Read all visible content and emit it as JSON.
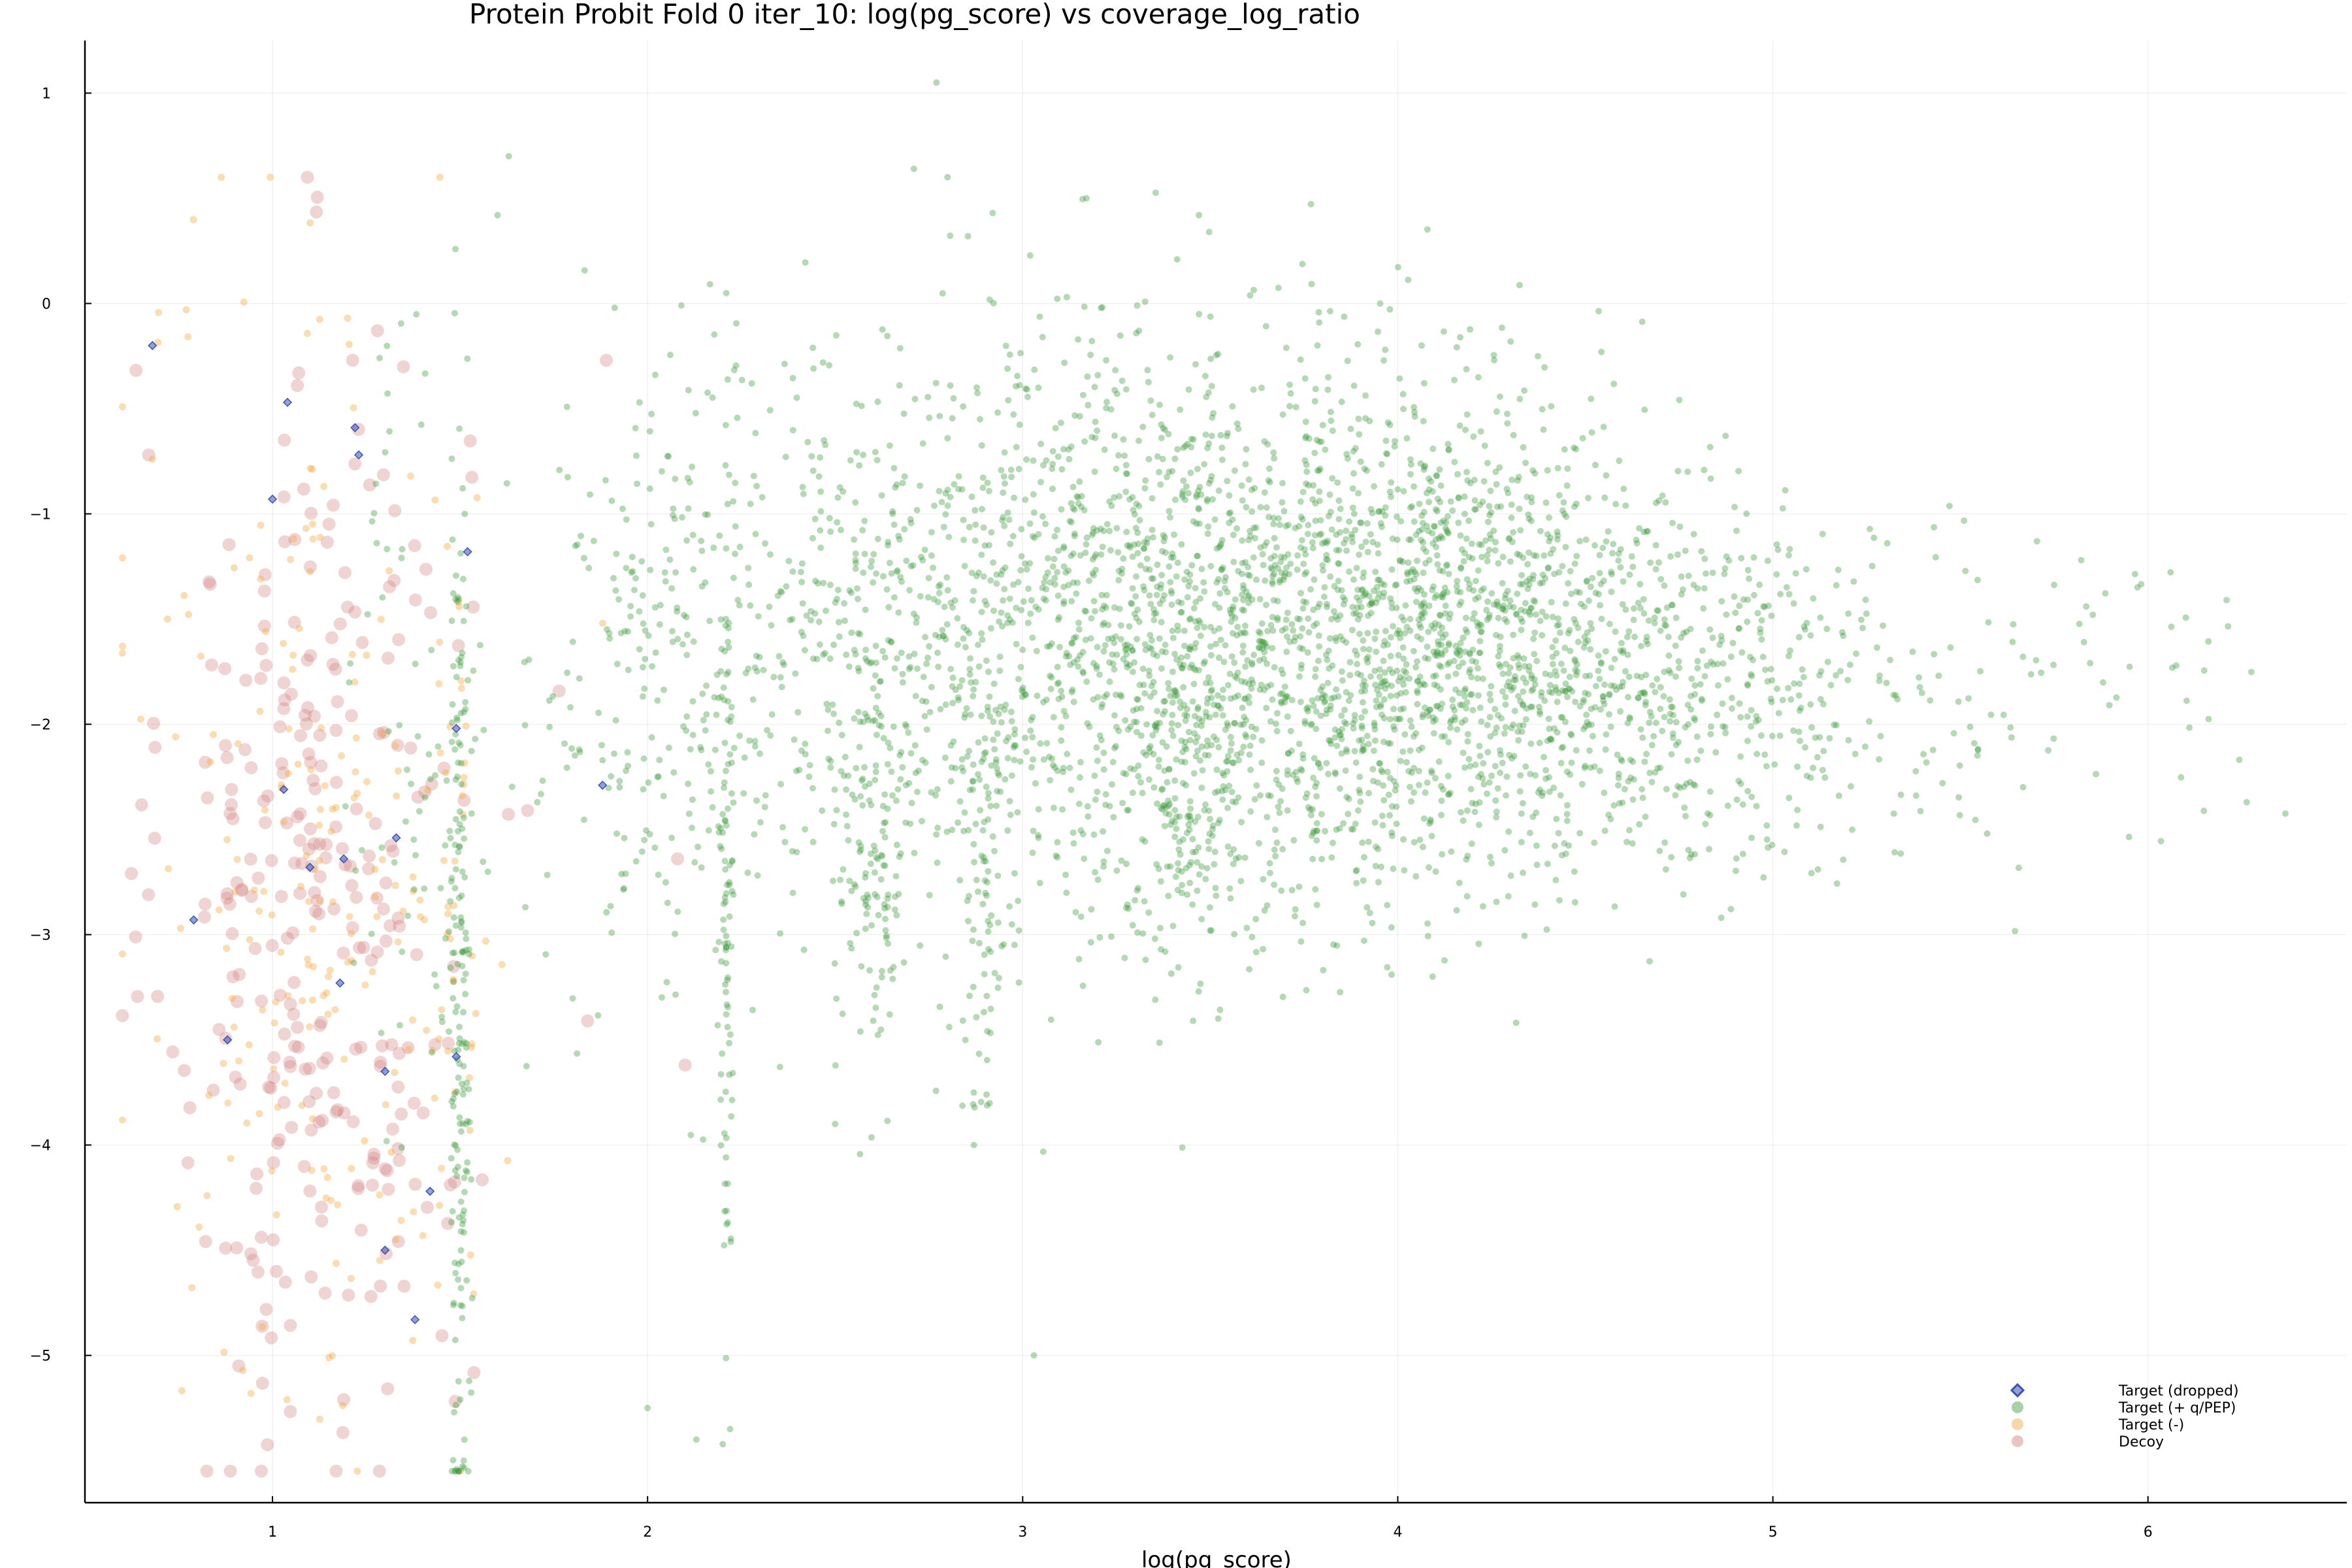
{
  "chart_data": {
    "type": "scatter",
    "title": "Protein Probit Fold 0 iter_10: log(pg_score) vs coverage_log_ratio",
    "xlabel": "log(pg_score)",
    "ylabel": "",
    "xlim": [
      0.5,
      6.53
    ],
    "ylim": [
      -5.7,
      1.25
    ],
    "xticks": [
      1,
      2,
      3,
      4,
      5,
      6
    ],
    "xtick_labels": [
      "1",
      "2",
      "3",
      "4",
      "5",
      "6"
    ],
    "yticks": [
      1,
      0,
      -1,
      -2,
      -3,
      -4,
      -5
    ],
    "ytick_labels": [
      "1",
      "0",
      "−1",
      "−2",
      "−3",
      "−4",
      "−5"
    ],
    "grid": true,
    "legend_position": "bottom-right",
    "series": [
      {
        "name": "Target (dropped)",
        "marker": "diamond",
        "color": "#3a52b8",
        "points": [
          [
            0.68,
            -0.2
          ],
          [
            1.04,
            -0.47
          ],
          [
            1.22,
            -0.59
          ],
          [
            1.23,
            -0.72
          ],
          [
            1.0,
            -0.93
          ],
          [
            1.52,
            -1.18
          ],
          [
            1.49,
            -2.02
          ],
          [
            1.03,
            -2.31
          ],
          [
            1.88,
            -2.29
          ],
          [
            1.19,
            -2.64
          ],
          [
            1.33,
            -2.54
          ],
          [
            1.1,
            -2.68
          ],
          [
            0.79,
            -2.93
          ],
          [
            1.18,
            -3.23
          ],
          [
            0.88,
            -3.5
          ],
          [
            1.3,
            -3.65
          ],
          [
            1.42,
            -4.22
          ],
          [
            1.3,
            -4.5
          ],
          [
            1.38,
            -4.83
          ],
          [
            1.49,
            -3.58
          ]
        ]
      },
      {
        "name": "Target (+ q/PEP)",
        "marker": "circle",
        "color": "#3d9a3d",
        "clusters": [
          {
            "cx": 1.5,
            "sx": 0.014,
            "cy": -3.3,
            "sy": 1.2,
            "n": 170
          },
          {
            "cx": 1.4,
            "sx": 0.1,
            "cy": -2.0,
            "sy": 1.1,
            "n": 80
          },
          {
            "cx": 2.21,
            "sx": 0.01,
            "cy": -2.9,
            "sy": 0.9,
            "n": 90
          },
          {
            "cx": 2.05,
            "sx": 0.17,
            "cy": -1.8,
            "sy": 0.8,
            "n": 230
          },
          {
            "cx": 2.6,
            "sx": 0.04,
            "cy": -2.6,
            "sy": 0.6,
            "n": 90
          },
          {
            "cx": 2.9,
            "sx": 0.03,
            "cy": -2.7,
            "sy": 0.7,
            "n": 80
          },
          {
            "cx": 3.45,
            "sx": 0.05,
            "cy": -2.5,
            "sy": 0.5,
            "n": 70
          },
          {
            "cx": 2.6,
            "sx": 0.3,
            "cy": -1.6,
            "sy": 0.7,
            "n": 450
          },
          {
            "cx": 3.2,
            "sx": 0.3,
            "cy": -1.6,
            "sy": 0.75,
            "n": 800
          },
          {
            "cx": 3.7,
            "sx": 0.3,
            "cy": -1.6,
            "sy": 0.65,
            "n": 1000
          },
          {
            "cx": 4.2,
            "sx": 0.3,
            "cy": -1.55,
            "sy": 0.55,
            "n": 900
          },
          {
            "cx": 4.7,
            "sx": 0.3,
            "cy": -1.8,
            "sy": 0.45,
            "n": 450
          },
          {
            "cx": 5.3,
            "sx": 0.35,
            "cy": -1.9,
            "sy": 0.4,
            "n": 140
          },
          {
            "cx": 6.0,
            "sx": 0.25,
            "cy": -1.9,
            "sy": 0.4,
            "n": 25
          }
        ],
        "points": [
          [
            2.77,
            1.05
          ],
          [
            2.71,
            0.64
          ],
          [
            3.17,
            0.5
          ],
          [
            1.63,
            0.7
          ],
          [
            1.6,
            0.42
          ],
          [
            2.92,
            0.43
          ],
          [
            3.47,
            0.42
          ],
          [
            3.03,
            -5.0
          ],
          [
            2.22,
            -5.35
          ],
          [
            2.13,
            -5.4
          ],
          [
            2.0,
            -5.25
          ],
          [
            1.51,
            -5.5
          ],
          [
            2.87,
            -4.0
          ],
          [
            2.5,
            -3.9
          ]
        ]
      },
      {
        "name": "Target (-)",
        "marker": "circle",
        "color": "#f5a742",
        "clusters": [
          {
            "cx": 1.1,
            "sx": 0.22,
            "cy": -2.7,
            "sy": 1.4,
            "n": 190
          },
          {
            "cx": 1.48,
            "sx": 0.05,
            "cy": -3.0,
            "sy": 1.2,
            "n": 50
          }
        ],
        "points": [
          [
            0.77,
            -0.03
          ],
          [
            1.2,
            -0.07
          ],
          [
            0.68,
            -0.74
          ],
          [
            0.72,
            -1.5
          ],
          [
            1.88,
            -1.52
          ]
        ]
      },
      {
        "name": "Decoy",
        "marker": "circle",
        "color": "#d07a7a",
        "clusters": [
          {
            "cx": 1.12,
            "sx": 0.2,
            "cy": -2.85,
            "sy": 1.3,
            "n": 300
          }
        ],
        "points": [
          [
            1.89,
            -0.27
          ],
          [
            1.68,
            -2.41
          ],
          [
            2.08,
            -2.64
          ],
          [
            2.1,
            -3.62
          ],
          [
            1.84,
            -3.41
          ],
          [
            0.67,
            -0.72
          ],
          [
            1.19,
            -5.21
          ],
          [
            0.91,
            -5.05
          ],
          [
            1.28,
            -0.13
          ],
          [
            1.07,
            -0.33
          ]
        ]
      }
    ]
  }
}
